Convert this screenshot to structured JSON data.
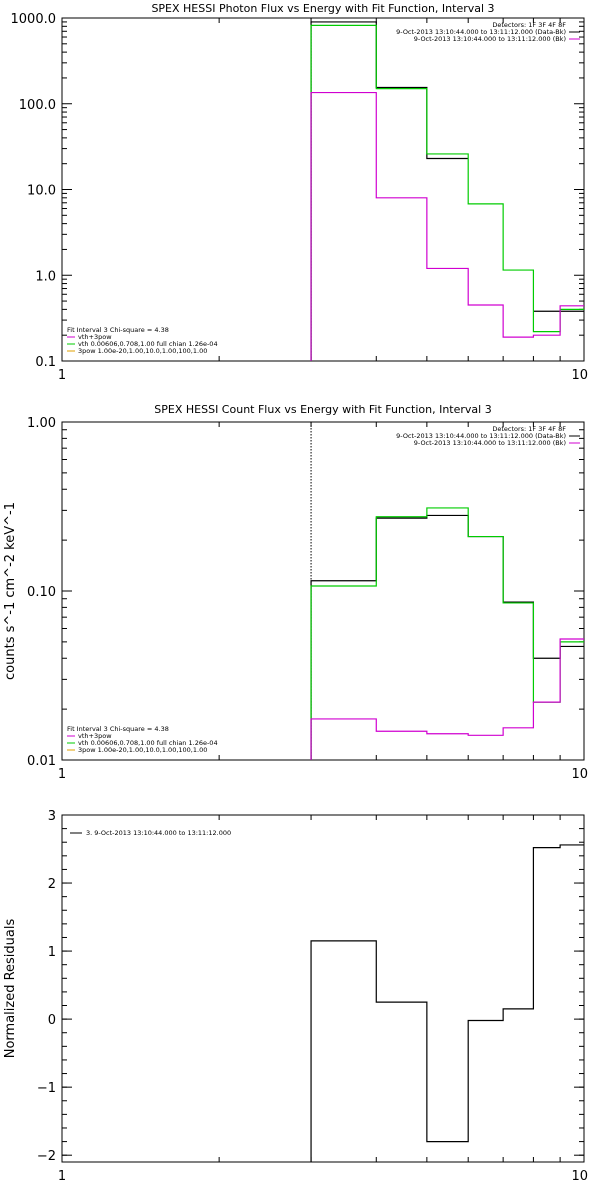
{
  "chart_data": [
    {
      "type": "line",
      "title": "SPEX HESSI Photon Flux vs Energy with Fit Function, Interval 3",
      "xlabel": "",
      "ylabel": "",
      "xscale": "log",
      "yscale": "log",
      "xlim": [
        1,
        10
      ],
      "ylim": [
        0.1,
        1000
      ],
      "xticklabels": [
        "1",
        "10"
      ],
      "yticks": [
        0.1,
        1,
        10,
        100,
        1000
      ],
      "yticklabels": [
        "0.1",
        "1.0",
        "10.0",
        "100.0",
        "1000.0"
      ],
      "marker_x": 3,
      "legend_top_right": [
        {
          "text": "Detectors: 1F 3F 4F 8F",
          "color": ""
        },
        {
          "text": "9-Oct-2013 13:10:44.000 to 13:11:12.000 (Data-Bk)",
          "color": "#000000"
        },
        {
          "text": "9-Oct-2013 13:10:44.000 to 13:11:12.000 (Bk)",
          "color": "#d000d0"
        }
      ],
      "legend_bottom_left": [
        {
          "text": "Fit Interval 3   Chi-square = 4.38",
          "color": ""
        },
        {
          "text": "vth+3pow",
          "color": "#d000d0"
        },
        {
          "text": "vth 0.00606,0.708,1.00   full chian 1.26e-04",
          "color": "#00cc00"
        },
        {
          "text": "3pow 1.00e-20,1.00,10.0,1.00,100,1.00",
          "color": "#e0a000"
        }
      ],
      "edges": [
        3,
        4,
        5,
        6,
        7,
        8,
        9,
        10
      ],
      "series": [
        {
          "name": "Data-Bk",
          "color": "#000000",
          "values": [
            900,
            155,
            23,
            null,
            null,
            0.38,
            0.38
          ]
        },
        {
          "name": "vth+3pow",
          "color": "#00cc00",
          "values": [
            820,
            150,
            26,
            6.8,
            1.15,
            0.22,
            0.4
          ]
        },
        {
          "name": "Bk",
          "color": "#d000d0",
          "values": [
            135,
            8,
            1.2,
            0.45,
            0.19,
            0.2,
            0.44
          ]
        }
      ]
    },
    {
      "type": "line",
      "title": "SPEX HESSI Count Flux vs Energy with Fit Function, Interval 3",
      "xlabel": "",
      "ylabel": "counts s^-1 cm^-2 keV^-1",
      "xscale": "log",
      "yscale": "log",
      "xlim": [
        1,
        10
      ],
      "ylim": [
        0.01,
        1
      ],
      "xticklabels": [
        "1",
        "10"
      ],
      "yticks": [
        0.01,
        0.1,
        1
      ],
      "yticklabels": [
        "0.01",
        "0.10",
        "1.00"
      ],
      "marker_x": 3,
      "legend_top_right": [
        {
          "text": "Detectors: 1F 3F 4F 8F",
          "color": ""
        },
        {
          "text": "9-Oct-2013 13:10:44.000 to 13:11:12.000 (Data-Bk)",
          "color": "#000000"
        },
        {
          "text": "9-Oct-2013 13:10:44.000 to 13:11:12.000 (Bk)",
          "color": "#d000d0"
        }
      ],
      "legend_bottom_left": [
        {
          "text": "Fit Interval 3   Chi-square = 4.38",
          "color": ""
        },
        {
          "text": "vth+3pow",
          "color": "#d000d0"
        },
        {
          "text": "vth 0.00606,0.708,1.00   full chian 1.26e-04",
          "color": "#00cc00"
        },
        {
          "text": "3pow 1.00e-20,1.00,10.0,1.00,100,1.00",
          "color": "#e0a000"
        }
      ],
      "edges": [
        3,
        4,
        5,
        6,
        7,
        8,
        9,
        10
      ],
      "series": [
        {
          "name": "Data-Bk",
          "color": "#000000",
          "values": [
            0.115,
            0.27,
            0.28,
            0.21,
            0.086,
            0.04,
            0.047
          ]
        },
        {
          "name": "vth+3pow",
          "color": "#00cc00",
          "values": [
            0.107,
            0.275,
            0.31,
            0.21,
            0.085,
            0.022,
            0.05
          ]
        },
        {
          "name": "Bk",
          "color": "#d000d0",
          "values": [
            0.0175,
            0.0148,
            0.0143,
            0.014,
            0.0155,
            0.022,
            0.052
          ]
        }
      ]
    },
    {
      "type": "line",
      "title": "",
      "xlabel": "",
      "ylabel": "Normalized Residuals",
      "xscale": "log",
      "yscale": "linear",
      "xlim": [
        1,
        10
      ],
      "ylim": [
        -2.1,
        3
      ],
      "xticklabels": [
        "1",
        "10"
      ],
      "yticks": [
        -2,
        -1,
        0,
        1,
        2,
        3
      ],
      "yticklabels": [
        "−2",
        "−1",
        "0",
        "1",
        "2",
        "3"
      ],
      "legend_top_left": [
        {
          "text": "3.  9-Oct-2013 13:10:44.000 to 13:11:12.000",
          "color": "#000000"
        }
      ],
      "edges": [
        3,
        4,
        5,
        6,
        7,
        7.5,
        8,
        9,
        10
      ],
      "series": [
        {
          "name": "",
          "color": "#000000",
          "values": [
            1.15,
            0.25,
            -1.8,
            -0.02,
            0.15,
            0.15,
            2.52,
            2.56
          ]
        }
      ]
    }
  ]
}
